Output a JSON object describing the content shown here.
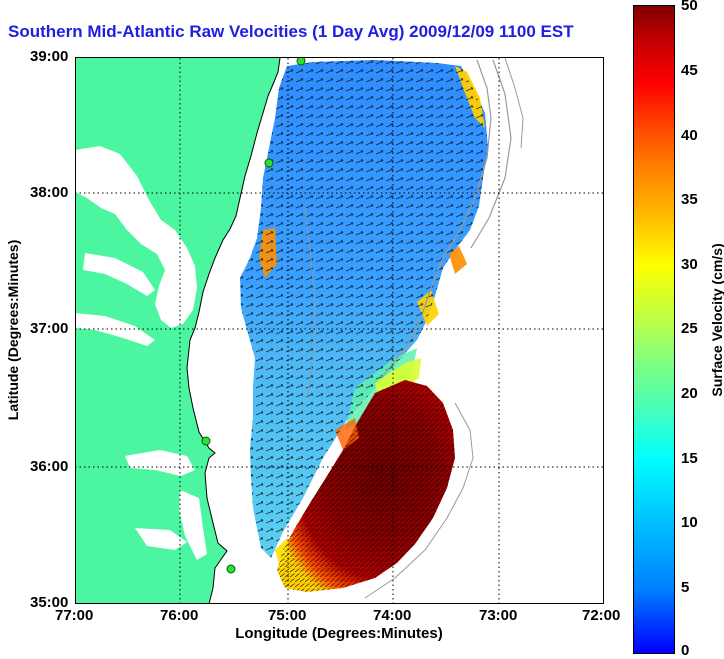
{
  "title": "Southern Mid-Atlantic Raw Velocities (1 Day Avg) 2009/12/09 1100 EST",
  "xlabel": "Longitude (Degrees:Minutes)",
  "ylabel": "Latitude (Degrees:Minutes)",
  "x_ticks": [
    "77:00",
    "76:00",
    "75:00",
    "74:00",
    "73:00",
    "72:00"
  ],
  "y_ticks": [
    "39:00",
    "38:00",
    "37:00",
    "36:00",
    "35:00"
  ],
  "colorbar": {
    "label": "Surface Velocity (cm/s)",
    "ticks": [
      "50",
      "45",
      "40",
      "35",
      "30",
      "25",
      "20",
      "15",
      "10",
      "5",
      "0"
    ],
    "min": 0,
    "max": 50
  },
  "colors": {
    "land": "#4cf59f",
    "title": "#1f1fe0",
    "station": "#2ee02e",
    "low_speed": "#1f7fff",
    "high_speed": "#8b0000"
  }
}
